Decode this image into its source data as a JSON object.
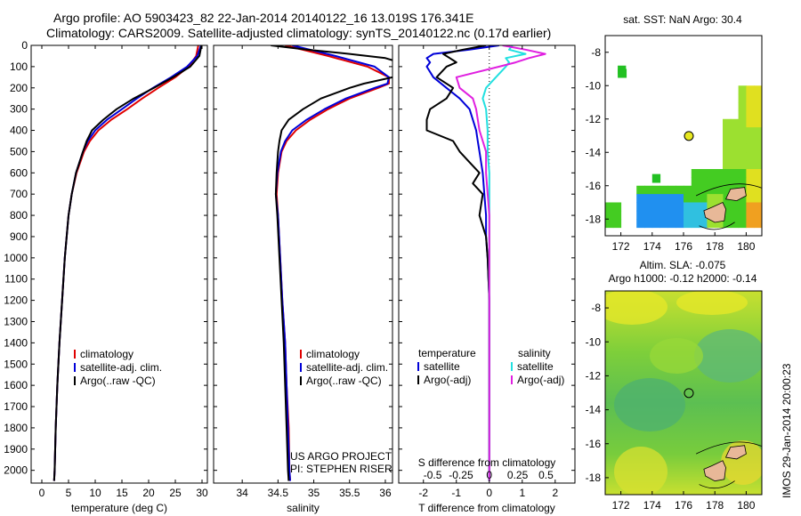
{
  "header": {
    "line1": "Argo profile: AO 5903423_82 22-Jan-2014 20140122_16 13.019S 176.341E",
    "line2": "Climatology: CARS2009. Satellite-adjusted climatology: synTS_20140122.nc (0.17d earlier)"
  },
  "stamp": "IMOS 29-Jan-2014 20:00:23",
  "colors": {
    "climatology": "#e00000",
    "satellite": "#0000d8",
    "argo": "#000000",
    "sat_salinity": "#22e0e0",
    "argo_salinity": "#e020e0",
    "land": "#e8b898",
    "map_bg": "#ffffff"
  },
  "chart_data": [
    {
      "type": "line",
      "name": "temperature-profile",
      "xlabel": "temperature (deg C)",
      "ylabel": "",
      "xlim": [
        -2,
        31
      ],
      "ylim": [
        2060,
        0
      ],
      "xticks": [
        0,
        5,
        10,
        15,
        20,
        25,
        30
      ],
      "yticks": [
        0,
        100,
        200,
        300,
        400,
        500,
        600,
        700,
        800,
        900,
        1000,
        1100,
        1200,
        1300,
        1400,
        1500,
        1600,
        1700,
        1800,
        1900,
        2000
      ],
      "legend": [
        "climatology",
        "satellite-adj. clim.",
        "Argo(..raw -QC)"
      ],
      "legend_position": "lower-center",
      "series": [
        {
          "name": "climatology",
          "color_key": "climatology",
          "depth": [
            0,
            50,
            100,
            150,
            200,
            250,
            300,
            350,
            400,
            450,
            500,
            600,
            700,
            800,
            1000,
            1200,
            1400,
            1600,
            1800,
            2000,
            2050
          ],
          "values": [
            29.3,
            28.9,
            27.5,
            25.0,
            21.8,
            18.8,
            16.0,
            13.0,
            10.6,
            9.0,
            7.9,
            6.5,
            5.6,
            5.0,
            4.3,
            3.8,
            3.3,
            2.9,
            2.6,
            2.4,
            2.3
          ]
        },
        {
          "name": "satellite-adj. clim.",
          "color_key": "satellite",
          "depth": [
            0,
            50,
            100,
            150,
            200,
            250,
            300,
            350,
            400,
            450,
            500,
            600,
            700,
            800,
            1000,
            1200,
            1400,
            1600,
            1800,
            2000,
            2050
          ],
          "values": [
            29.8,
            29.1,
            27.2,
            24.2,
            20.8,
            17.8,
            15.0,
            12.2,
            10.0,
            8.6,
            7.7,
            6.4,
            5.6,
            5.0,
            4.3,
            3.8,
            3.3,
            2.9,
            2.6,
            2.4,
            2.3
          ]
        },
        {
          "name": "Argo(..raw -QC)",
          "color_key": "argo",
          "depth": [
            0,
            50,
            100,
            150,
            200,
            250,
            300,
            350,
            400,
            450,
            500,
            600,
            700,
            800,
            1000,
            1200,
            1400,
            1600,
            1800,
            2000,
            2050
          ],
          "values": [
            29.9,
            29.5,
            27.8,
            24.6,
            21.0,
            17.2,
            14.0,
            11.5,
            9.4,
            8.4,
            7.7,
            6.4,
            5.6,
            5.0,
            4.3,
            3.8,
            3.3,
            2.9,
            2.6,
            2.4,
            2.3
          ]
        }
      ]
    },
    {
      "type": "line",
      "name": "salinity-profile",
      "xlabel": "salinity",
      "xlim": [
        33.6,
        36.1
      ],
      "ylim": [
        2060,
        0
      ],
      "xticks": [
        34,
        34.5,
        35,
        35.5,
        36
      ],
      "xticklabels": [
        "34",
        "34.5",
        "35",
        "35.5",
        "36"
      ],
      "legend": [
        "climatology",
        "satellite-adj. clim.",
        "Argo(..raw -QC)"
      ],
      "legend_position": "lower-right",
      "annotation": [
        "US ARGO PROJECT",
        "PI: STEPHEN RISER"
      ],
      "series": [
        {
          "name": "climatology",
          "color_key": "climatology",
          "depth": [
            0,
            50,
            100,
            150,
            180,
            200,
            250,
            300,
            350,
            400,
            450,
            500,
            600,
            700,
            800,
            1000,
            1200,
            1400,
            1600,
            1800,
            2000,
            2050
          ],
          "values": [
            34.6,
            35.2,
            35.75,
            36.05,
            36.05,
            35.9,
            35.5,
            35.2,
            34.95,
            34.75,
            34.62,
            34.55,
            34.5,
            34.48,
            34.5,
            34.53,
            34.56,
            34.6,
            34.62,
            34.65,
            34.66,
            34.67
          ]
        },
        {
          "name": "satellite-adj. clim.",
          "color_key": "satellite",
          "depth": [
            0,
            50,
            100,
            150,
            180,
            200,
            250,
            300,
            350,
            400,
            450,
            500,
            600,
            700,
            800,
            1000,
            1200,
            1400,
            1600,
            1800,
            2000,
            2050
          ],
          "values": [
            34.7,
            35.3,
            35.85,
            36.05,
            36.03,
            35.85,
            35.45,
            35.15,
            34.9,
            34.7,
            34.6,
            34.54,
            34.49,
            34.47,
            34.5,
            34.53,
            34.56,
            34.6,
            34.62,
            34.64,
            34.66,
            34.67
          ]
        },
        {
          "name": "Argo(..raw -QC)",
          "color_key": "argo",
          "depth": [
            0,
            20,
            40,
            60,
            80,
            100,
            150,
            180,
            200,
            250,
            300,
            350,
            400,
            450,
            500,
            600,
            700,
            800,
            1000,
            1200,
            1400,
            1600,
            1800,
            2000,
            2050
          ],
          "values": [
            34.4,
            34.9,
            35.5,
            36.0,
            36.2,
            36.25,
            36.1,
            35.7,
            35.5,
            35.1,
            34.85,
            34.65,
            34.55,
            34.52,
            34.5,
            34.48,
            34.47,
            34.49,
            34.52,
            34.55,
            34.58,
            34.6,
            34.62,
            34.64,
            34.65
          ]
        }
      ]
    },
    {
      "type": "line",
      "name": "difference-profile",
      "xlabel": "T difference from climatology",
      "xlabel_top": "S difference from climatology",
      "xlim": [
        -2.75,
        2.6
      ],
      "ylim": [
        2060,
        0
      ],
      "xticks": [
        -2,
        -1,
        0,
        1,
        2
      ],
      "xticklabels": [
        "-2",
        "-1",
        "0",
        "1",
        "2"
      ],
      "sticks_pos": [
        -1.72,
        -0.86,
        0,
        0.86,
        1.72
      ],
      "sticklabels": [
        "-0.5",
        "-0.25",
        "0",
        "0.25",
        "0.5"
      ],
      "legend_temperature": {
        "heading": "temperature",
        "items": [
          "satellite",
          "Argo(-adj)"
        ]
      },
      "legend_salinity": {
        "heading": "salinity",
        "items": [
          "satellite",
          "Argo(-adj)"
        ]
      },
      "series": [
        {
          "name": "temperature satellite",
          "color_key": "satellite",
          "depth": [
            0,
            20,
            40,
            60,
            80,
            100,
            150,
            200,
            250,
            300,
            350,
            400,
            450,
            500,
            600,
            700,
            800,
            900,
            1000,
            1200,
            1500,
            2000,
            2050
          ],
          "values": [
            0.3,
            -0.6,
            -1.7,
            -1.9,
            -1.8,
            -1.9,
            -1.7,
            -1.3,
            -0.9,
            -0.6,
            -0.5,
            -0.4,
            -0.35,
            -0.3,
            -0.2,
            -0.15,
            -0.1,
            -0.1,
            -0.05,
            0,
            0,
            0,
            0
          ]
        },
        {
          "name": "temperature Argo(-adj)",
          "color_key": "argo",
          "depth": [
            0,
            20,
            40,
            60,
            80,
            100,
            150,
            200,
            250,
            300,
            350,
            400,
            450,
            500,
            550,
            600,
            650,
            700,
            800,
            900,
            1000,
            1200,
            1500,
            2000,
            2050
          ],
          "values": [
            -0.1,
            -0.8,
            -1.4,
            -1.2,
            -1.0,
            -1.3,
            -1.6,
            -1.1,
            -1.3,
            -1.8,
            -1.9,
            -1.9,
            -1.1,
            -0.9,
            -0.6,
            -0.3,
            -0.5,
            -0.2,
            -0.3,
            -0.1,
            -0.05,
            0,
            0,
            0,
            0
          ]
        },
        {
          "name": "salinity satellite",
          "color_key": "sat_salinity",
          "depth": [
            0,
            20,
            40,
            60,
            80,
            100,
            150,
            200,
            250,
            300,
            400,
            500,
            600,
            800,
            1000,
            1500,
            2000,
            2050
          ],
          "values": [
            0.7,
            0.6,
            1.1,
            0.5,
            0.6,
            0.5,
            0.2,
            -0.1,
            -0.2,
            -0.1,
            -0.05,
            -0.05,
            0,
            0,
            0,
            0,
            0,
            0
          ]
        },
        {
          "name": "salinity Argo(-adj)",
          "color_key": "argo_salinity",
          "depth": [
            0,
            20,
            40,
            60,
            80,
            100,
            150,
            200,
            250,
            300,
            400,
            500,
            600,
            800,
            1000,
            1500,
            2000,
            2050
          ],
          "values": [
            0.4,
            1.1,
            1.7,
            1.2,
            0.8,
            0.3,
            -1.0,
            -0.9,
            -0.5,
            -0.4,
            -0.3,
            -0.1,
            -0.1,
            0,
            0,
            0,
            0,
            0
          ]
        }
      ]
    },
    {
      "type": "heatmap",
      "name": "sst-map",
      "title": "sat. SST: NaN  Argo: 30.4",
      "xlim": [
        171,
        181
      ],
      "ylim": [
        -19,
        -7
      ],
      "xticks": [
        172,
        174,
        176,
        178,
        180
      ],
      "yticks": [
        -8,
        -10,
        -12,
        -14,
        -16,
        -18
      ],
      "argo_position": [
        176.341,
        -13.019
      ],
      "argo_marker": "filled-yellow-circle"
    },
    {
      "type": "heatmap",
      "name": "sla-map",
      "title": [
        "Altim. SLA: -0.075",
        "Argo h1000: -0.12  h2000: -0.14"
      ],
      "xlim": [
        171,
        181
      ],
      "ylim": [
        -19,
        -7
      ],
      "xticks": [
        172,
        174,
        176,
        178,
        180
      ],
      "yticks": [
        -8,
        -10,
        -12,
        -14,
        -16,
        -18
      ],
      "argo_position": [
        176.341,
        -13.019
      ],
      "argo_marker": "open-circle"
    }
  ]
}
